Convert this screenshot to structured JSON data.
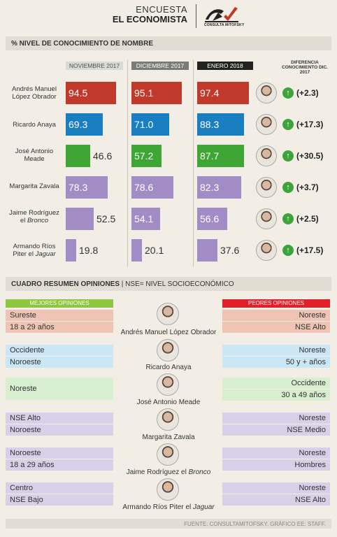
{
  "brand": {
    "line1": "ENCUESTA",
    "line2": "EL ECONOMISTA",
    "logo_text": "CONSULTA MITOFSKY"
  },
  "section1": {
    "title": "% NIVEL DE CONOCIMIENTO DE NOMBRE"
  },
  "section2": {
    "title": "CUADRO RESUMEN OPINIONES",
    "subtitle": "| NSE= NIVEL SOCIOECONÓMICO"
  },
  "chart_data": {
    "type": "bar",
    "title": "% NIVEL DE CONOCIMIENTO DE NOMBRE",
    "categories": [
      "Andrés Manuel López Obrador",
      "Ricardo Anaya",
      "José Antonio Meade",
      "Margarita Zavala",
      "Jaime Rodríguez el Bronco",
      "Armando Ríos Piter el Jaguar"
    ],
    "series": [
      {
        "name": "NOVIEMBRE 2017",
        "values": [
          94.5,
          69.3,
          46.6,
          78.3,
          52.5,
          19.8
        ]
      },
      {
        "name": "DICIEMBRE 2017",
        "values": [
          95.1,
          71.0,
          57.2,
          78.6,
          54.1,
          20.1
        ]
      },
      {
        "name": "ENERO 2018",
        "values": [
          97.4,
          88.3,
          87.7,
          82.3,
          56.6,
          37.6
        ]
      }
    ],
    "series_header_colors": [
      "#d9d9d9",
      "#7a7a7a",
      "#222222"
    ],
    "diff_label": "DIFERENCIA CONOCIMIENTO DIC. 2017",
    "diffs": [
      "(+2.3)",
      "(+17.3)",
      "(+30.5)",
      "(+3.7)",
      "(+2.5)",
      "(+17.5)"
    ],
    "bar_colors": [
      "#c0392b",
      "#1a7fc0",
      "#3fa535",
      "#a28cc6",
      "#a28cc6",
      "#a28cc6"
    ],
    "ylim": [
      0,
      100
    ]
  },
  "labels": {
    "amlo": [
      "Andrés Manuel",
      "López Obrador"
    ],
    "anaya": [
      "Ricardo Anaya"
    ],
    "meade": [
      "José Antonio",
      "Meade"
    ],
    "zavala": [
      "Margarita Zavala"
    ],
    "bronco_1": "Jaime Rodríguez",
    "bronco_2a": "el ",
    "bronco_2b": "Bronco",
    "jaguar_1": "Armando Ríos",
    "jaguar_2a": "Piter el ",
    "jaguar_2b": "Jaguar"
  },
  "opinions": {
    "best_label": "MEJORES OPINIONES",
    "worst_label": "PEORES OPINIONES",
    "best_color": "#8dc63f",
    "worst_color": "#e2202a",
    "rows": [
      {
        "name": "Andrés Manuel López Obrador",
        "best": [
          "Sureste",
          "18 a 29 años"
        ],
        "worst": [
          "Noreste",
          "NSE Alto"
        ],
        "color": "#f0c4b4"
      },
      {
        "name": "Ricardo Anaya",
        "best": [
          "Occidente",
          "Noroeste"
        ],
        "worst": [
          "Noreste",
          "50 y + años"
        ],
        "color": "#cbe6f4"
      },
      {
        "name": "José Antonio Meade",
        "best": [
          "Noreste"
        ],
        "worst": [
          "Occidente",
          "30 a 49 años"
        ],
        "color": "#d7eecf"
      },
      {
        "name": "Margarita Zavala",
        "best": [
          "NSE Alto",
          "Noroeste"
        ],
        "worst": [
          "Noreste",
          "NSE Medio"
        ],
        "color": "#d8cfe8"
      },
      {
        "name_a": "Jaime Rodríguez el ",
        "name_b": "Bronco",
        "best": [
          "Noroeste",
          "18 a 29 años"
        ],
        "worst": [
          "Noreste",
          "Hombres"
        ],
        "color": "#d8cfe8"
      },
      {
        "name_a": "Armando Ríos Piter el ",
        "name_b": "Jaguar",
        "best": [
          "Centro",
          "NSE Bajo"
        ],
        "worst": [
          "Noreste",
          "NSE Alto"
        ],
        "color": "#d8cfe8"
      }
    ]
  },
  "footer": "FUENTE: CONSULTAMITOFSKY. GRÁFICO EE: STAFF."
}
